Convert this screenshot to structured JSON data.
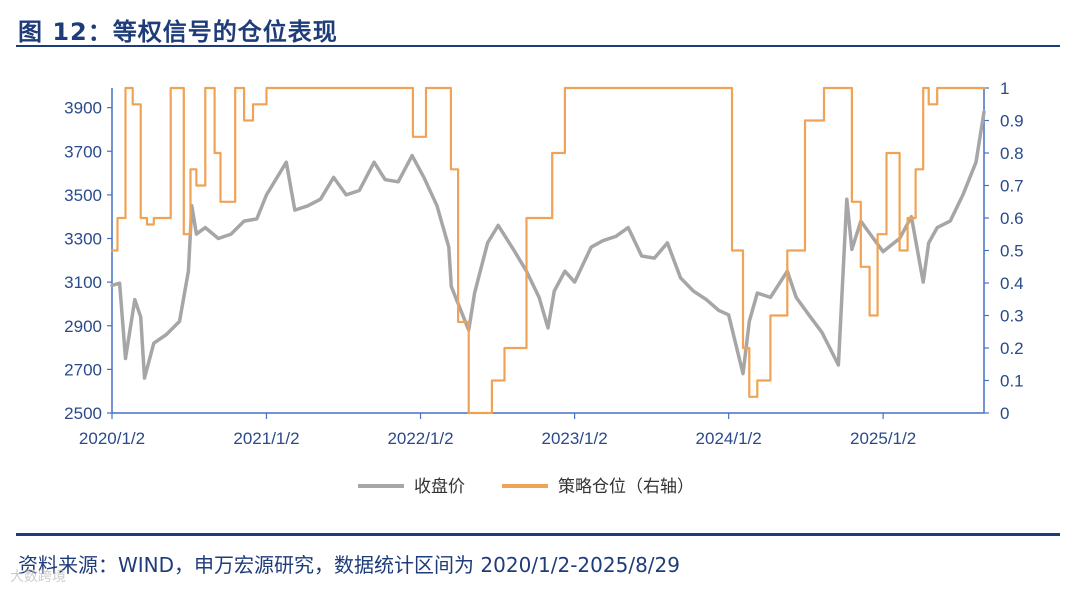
{
  "title": "图 12：等权信号的仓位表现",
  "source": "资料来源：WIND，申万宏源研究，数据统计区间为 2020/1/2-2025/8/29",
  "watermark": "大数跨境",
  "colors": {
    "index": "#a6a6a6",
    "position": "#f0a256",
    "axis": "#4472c4",
    "text": "#1f3c7a"
  },
  "chart_data": {
    "type": "line",
    "x_tick_labels": [
      "2020/1/2",
      "2021/1/2",
      "2022/1/2",
      "2023/1/2",
      "2024/1/2",
      "2025/1/2"
    ],
    "x_ticks": [
      "2020-01-02",
      "2021-01-02",
      "2022-01-02",
      "2023-01-02",
      "2024-01-02",
      "2025-01-02"
    ],
    "xlim": [
      "2020-01-02",
      "2025-08-29"
    ],
    "y_left_ticks": [
      2500,
      2700,
      2900,
      3100,
      3300,
      3500,
      3700,
      3900
    ],
    "y_left_lim": [
      2500,
      3990
    ],
    "y_right_ticks": [
      0,
      0.1,
      0.2,
      0.3,
      0.4,
      0.5,
      0.6,
      0.7,
      0.8,
      0.9,
      1
    ],
    "y_right_lim": [
      0,
      1
    ],
    "legend": [
      "收盘价",
      "策略仓位（右轴）"
    ],
    "legend_position": "bottom",
    "series": [
      {
        "name": "收盘价",
        "axis": "left",
        "x": [
          "2020-01-02",
          "2020-01-20",
          "2020-02-03",
          "2020-02-25",
          "2020-03-10",
          "2020-03-19",
          "2020-04-10",
          "2020-05-10",
          "2020-06-10",
          "2020-07-01",
          "2020-07-09",
          "2020-07-20",
          "2020-08-10",
          "2020-09-10",
          "2020-10-10",
          "2020-11-10",
          "2020-12-10",
          "2021-01-02",
          "2021-02-18",
          "2021-03-10",
          "2021-04-10",
          "2021-05-10",
          "2021-06-10",
          "2021-07-10",
          "2021-08-10",
          "2021-09-14",
          "2021-10-10",
          "2021-11-10",
          "2021-12-13",
          "2022-01-10",
          "2022-02-10",
          "2022-03-10",
          "2022-03-16",
          "2022-04-26",
          "2022-05-10",
          "2022-06-10",
          "2022-07-05",
          "2022-08-10",
          "2022-09-10",
          "2022-10-10",
          "2022-10-31",
          "2022-11-15",
          "2022-12-10",
          "2023-01-02",
          "2023-02-10",
          "2023-03-10",
          "2023-04-10",
          "2023-05-09",
          "2023-06-10",
          "2023-07-10",
          "2023-08-10",
          "2023-09-10",
          "2023-10-10",
          "2023-11-10",
          "2023-12-10",
          "2024-01-02",
          "2024-02-05",
          "2024-02-20",
          "2024-03-10",
          "2024-04-10",
          "2024-05-20",
          "2024-06-10",
          "2024-07-10",
          "2024-08-10",
          "2024-09-18",
          "2024-10-08",
          "2024-10-20",
          "2024-11-10",
          "2024-12-10",
          "2025-01-02",
          "2025-02-10",
          "2025-03-10",
          "2025-04-07",
          "2025-04-20",
          "2025-05-10",
          "2025-06-10",
          "2025-07-10",
          "2025-08-10",
          "2025-08-29"
        ],
        "values": [
          3085,
          3095,
          2750,
          3020,
          2940,
          2660,
          2820,
          2860,
          2920,
          3150,
          3450,
          3320,
          3350,
          3300,
          3320,
          3380,
          3390,
          3500,
          3650,
          3430,
          3450,
          3480,
          3580,
          3500,
          3520,
          3650,
          3570,
          3560,
          3680,
          3580,
          3450,
          3260,
          3080,
          2880,
          3050,
          3280,
          3360,
          3250,
          3150,
          3030,
          2890,
          3060,
          3150,
          3100,
          3260,
          3290,
          3310,
          3350,
          3220,
          3210,
          3280,
          3120,
          3060,
          3020,
          2970,
          2950,
          2680,
          2920,
          3050,
          3030,
          3150,
          3030,
          2950,
          2870,
          2720,
          3480,
          3250,
          3380,
          3300,
          3240,
          3300,
          3400,
          3100,
          3280,
          3350,
          3380,
          3500,
          3650,
          3880
        ]
      },
      {
        "name": "策略仓位（右轴）",
        "axis": "right",
        "x": [
          "2020-01-02",
          "2020-01-15",
          "2020-02-03",
          "2020-02-20",
          "2020-03-10",
          "2020-03-25",
          "2020-04-10",
          "2020-05-20",
          "2020-06-10",
          "2020-06-20",
          "2020-07-06",
          "2020-07-20",
          "2020-08-10",
          "2020-09-01",
          "2020-09-15",
          "2020-10-20",
          "2020-11-10",
          "2020-12-01",
          "2021-01-02",
          "2021-02-01",
          "2021-03-01",
          "2021-04-01",
          "2021-05-01",
          "2021-06-01",
          "2021-07-01",
          "2021-08-01",
          "2021-09-01",
          "2021-10-01",
          "2021-11-01",
          "2021-12-01",
          "2021-12-15",
          "2022-01-15",
          "2022-02-15",
          "2022-03-01",
          "2022-03-15",
          "2022-04-01",
          "2022-04-26",
          "2022-05-10",
          "2022-06-10",
          "2022-06-20",
          "2022-07-20",
          "2022-09-10",
          "2022-11-10",
          "2022-12-10",
          "2023-01-02",
          "2023-04-01",
          "2023-07-01",
          "2023-10-01",
          "2023-12-01",
          "2024-01-02",
          "2024-01-10",
          "2024-02-05",
          "2024-02-20",
          "2024-03-10",
          "2024-04-10",
          "2024-05-20",
          "2024-07-01",
          "2024-08-15",
          "2024-09-24",
          "2024-10-08",
          "2024-10-20",
          "2024-11-10",
          "2024-12-01",
          "2024-12-20",
          "2025-01-10",
          "2025-02-10",
          "2025-03-01",
          "2025-03-20",
          "2025-04-07",
          "2025-04-20",
          "2025-05-10",
          "2025-06-10",
          "2025-07-10",
          "2025-08-29"
        ],
        "values": [
          0.5,
          0.6,
          1,
          0.95,
          0.6,
          0.58,
          0.6,
          1,
          1,
          0.55,
          0.75,
          0.7,
          1,
          0.8,
          0.65,
          1,
          0.9,
          0.95,
          1,
          1,
          1,
          1,
          1,
          1,
          1,
          1,
          1,
          1,
          1,
          1,
          0.85,
          1,
          1,
          1,
          0.75,
          0.28,
          0,
          0,
          0,
          0.1,
          0.2,
          0.6,
          0.8,
          1,
          1,
          1,
          1,
          1,
          1,
          1,
          0.5,
          0.2,
          0.05,
          0.1,
          0.3,
          0.5,
          0.9,
          1,
          1,
          1,
          0.65,
          0.45,
          0.3,
          0.55,
          0.8,
          0.5,
          0.6,
          0.75,
          1,
          0.95,
          1,
          1,
          1,
          1
        ]
      }
    ]
  }
}
